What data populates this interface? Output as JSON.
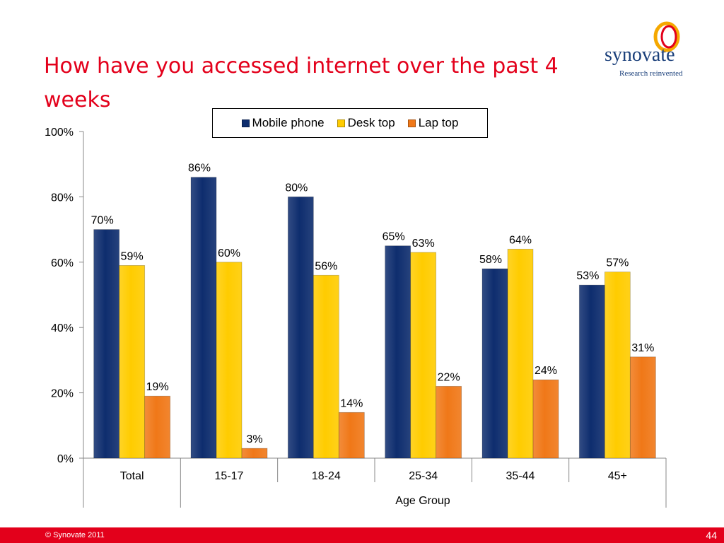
{
  "slide": {
    "title": "How have you accessed internet over the past 4 weeks",
    "logo_word": "synovate",
    "logo_tagline": "Research reinvented",
    "copyright": "© Synovate 2011",
    "page_number": "44"
  },
  "colors": {
    "title": "#e3001b",
    "footer": "#e3001b",
    "mobile": "#0e2d6e",
    "desktop": "#ffcc00",
    "laptop": "#f07818"
  },
  "chart_data": {
    "type": "bar",
    "title": "",
    "xlabel": "Age Group",
    "ylabel": "",
    "ylim": [
      0,
      100
    ],
    "y_ticks": [
      "0%",
      "20%",
      "40%",
      "60%",
      "80%",
      "100%"
    ],
    "grid": false,
    "legend_position": "top",
    "categories": [
      "Total",
      "15-17",
      "18-24",
      "25-34",
      "35-44",
      "45+"
    ],
    "series": [
      {
        "name": "Mobile phone",
        "color": "#0e2d6e",
        "values": [
          70,
          86,
          80,
          65,
          58,
          53
        ],
        "labels": [
          "70%",
          "86%",
          "80%",
          "65%",
          "58%",
          "53%"
        ]
      },
      {
        "name": "Desk top",
        "color": "#ffcc00",
        "values": [
          59,
          60,
          56,
          63,
          64,
          57
        ],
        "labels": [
          "59%",
          "60%",
          "56%",
          "63%",
          "64%",
          "57%"
        ]
      },
      {
        "name": "Lap top",
        "color": "#f07818",
        "values": [
          19,
          3,
          14,
          22,
          24,
          31
        ],
        "labels": [
          "19%",
          "3%",
          "14%",
          "22%",
          "24%",
          "31%"
        ]
      }
    ]
  }
}
